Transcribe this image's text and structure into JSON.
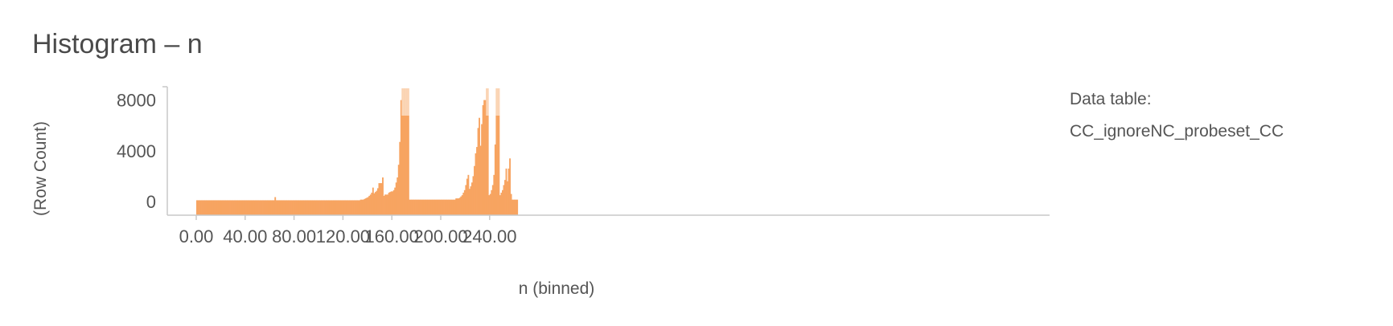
{
  "title": "Histogram – n",
  "legend": {
    "label": "Data table:",
    "table_name": "CC_ignoreNC_probeset_CC"
  },
  "colors": {
    "bar": "#f7a461",
    "axis": "#c8c8c8",
    "text": "#555555"
  },
  "chart_data": {
    "type": "bar",
    "xlabel": "n (binned)",
    "ylabel": "(Row Count)",
    "xlim": [
      -10,
      280
    ],
    "ylim": [
      -1000,
      9000
    ],
    "x_ticks": [
      0,
      40,
      80,
      120,
      160,
      200,
      240
    ],
    "x_tick_labels": [
      "0.00",
      "40.00",
      "80.00",
      "120.00",
      "160.00",
      "200.00",
      "240.00"
    ],
    "y_ticks": [
      0,
      4000,
      8000
    ],
    "y_tick_labels": [
      "0",
      "4000",
      "8000"
    ],
    "bin_width": 1,
    "truncated_above": 8400,
    "bins": [
      {
        "x": 0,
        "value": 100
      },
      {
        "x": 1,
        "value": 100
      },
      {
        "x": 2,
        "value": 100
      },
      {
        "x": 3,
        "value": 100
      },
      {
        "x": 4,
        "value": 100
      },
      {
        "x": 5,
        "value": 100
      },
      {
        "x": 6,
        "value": 100
      },
      {
        "x": 7,
        "value": 100
      },
      {
        "x": 8,
        "value": 100
      },
      {
        "x": 9,
        "value": 100
      },
      {
        "x": 10,
        "value": 100
      },
      {
        "x": 11,
        "value": 100
      },
      {
        "x": 12,
        "value": 100
      },
      {
        "x": 13,
        "value": 100
      },
      {
        "x": 14,
        "value": 100
      },
      {
        "x": 15,
        "value": 100
      },
      {
        "x": 16,
        "value": 100
      },
      {
        "x": 17,
        "value": 100
      },
      {
        "x": 18,
        "value": 100
      },
      {
        "x": 19,
        "value": 100
      },
      {
        "x": 20,
        "value": 100
      },
      {
        "x": 21,
        "value": 100
      },
      {
        "x": 22,
        "value": 100
      },
      {
        "x": 23,
        "value": 100
      },
      {
        "x": 24,
        "value": 100
      },
      {
        "x": 25,
        "value": 100
      },
      {
        "x": 26,
        "value": 100
      },
      {
        "x": 27,
        "value": 100
      },
      {
        "x": 28,
        "value": 100
      },
      {
        "x": 29,
        "value": 100
      },
      {
        "x": 30,
        "value": 100
      },
      {
        "x": 31,
        "value": 100
      },
      {
        "x": 32,
        "value": 100
      },
      {
        "x": 33,
        "value": 100
      },
      {
        "x": 34,
        "value": 100
      },
      {
        "x": 35,
        "value": 100
      },
      {
        "x": 36,
        "value": 100
      },
      {
        "x": 37,
        "value": 100
      },
      {
        "x": 38,
        "value": 100
      },
      {
        "x": 39,
        "value": 100
      },
      {
        "x": 40,
        "value": 100
      },
      {
        "x": 41,
        "value": 100
      },
      {
        "x": 42,
        "value": 100
      },
      {
        "x": 43,
        "value": 100
      },
      {
        "x": 44,
        "value": 100
      },
      {
        "x": 45,
        "value": 100
      },
      {
        "x": 46,
        "value": 100
      },
      {
        "x": 47,
        "value": 100
      },
      {
        "x": 48,
        "value": 100
      },
      {
        "x": 49,
        "value": 100
      },
      {
        "x": 50,
        "value": 100
      },
      {
        "x": 51,
        "value": 100
      },
      {
        "x": 52,
        "value": 100
      },
      {
        "x": 53,
        "value": 100
      },
      {
        "x": 54,
        "value": 100
      },
      {
        "x": 55,
        "value": 100
      },
      {
        "x": 56,
        "value": 100
      },
      {
        "x": 57,
        "value": 100
      },
      {
        "x": 58,
        "value": 100
      },
      {
        "x": 59,
        "value": 100
      },
      {
        "x": 60,
        "value": 100
      },
      {
        "x": 61,
        "value": 100
      },
      {
        "x": 62,
        "value": 100
      },
      {
        "x": 63,
        "value": 100
      },
      {
        "x": 64,
        "value": 350
      },
      {
        "x": 65,
        "value": 100
      },
      {
        "x": 66,
        "value": 100
      },
      {
        "x": 67,
        "value": 100
      },
      {
        "x": 68,
        "value": 100
      },
      {
        "x": 69,
        "value": 100
      },
      {
        "x": 70,
        "value": 100
      },
      {
        "x": 71,
        "value": 100
      },
      {
        "x": 72,
        "value": 100
      },
      {
        "x": 73,
        "value": 100
      },
      {
        "x": 74,
        "value": 100
      },
      {
        "x": 75,
        "value": 100
      },
      {
        "x": 76,
        "value": 100
      },
      {
        "x": 77,
        "value": 100
      },
      {
        "x": 78,
        "value": 100
      },
      {
        "x": 79,
        "value": 100
      },
      {
        "x": 80,
        "value": 100
      },
      {
        "x": 81,
        "value": 100
      },
      {
        "x": 82,
        "value": 100
      },
      {
        "x": 83,
        "value": 100
      },
      {
        "x": 84,
        "value": 100
      },
      {
        "x": 85,
        "value": 100
      },
      {
        "x": 86,
        "value": 100
      },
      {
        "x": 87,
        "value": 100
      },
      {
        "x": 88,
        "value": 100
      },
      {
        "x": 89,
        "value": 100
      },
      {
        "x": 90,
        "value": 100
      },
      {
        "x": 91,
        "value": 100
      },
      {
        "x": 92,
        "value": 100
      },
      {
        "x": 93,
        "value": 100
      },
      {
        "x": 94,
        "value": 100
      },
      {
        "x": 95,
        "value": 100
      },
      {
        "x": 96,
        "value": 100
      },
      {
        "x": 97,
        "value": 100
      },
      {
        "x": 98,
        "value": 100
      },
      {
        "x": 99,
        "value": 100
      },
      {
        "x": 100,
        "value": 100
      },
      {
        "x": 101,
        "value": 100
      },
      {
        "x": 102,
        "value": 100
      },
      {
        "x": 103,
        "value": 100
      },
      {
        "x": 104,
        "value": 100
      },
      {
        "x": 105,
        "value": 100
      },
      {
        "x": 106,
        "value": 100
      },
      {
        "x": 107,
        "value": 100
      },
      {
        "x": 108,
        "value": 100
      },
      {
        "x": 109,
        "value": 100
      },
      {
        "x": 110,
        "value": 100
      },
      {
        "x": 111,
        "value": 100
      },
      {
        "x": 112,
        "value": 100
      },
      {
        "x": 113,
        "value": 100
      },
      {
        "x": 114,
        "value": 100
      },
      {
        "x": 115,
        "value": 100
      },
      {
        "x": 116,
        "value": 100
      },
      {
        "x": 117,
        "value": 100
      },
      {
        "x": 118,
        "value": 100
      },
      {
        "x": 119,
        "value": 100
      },
      {
        "x": 120,
        "value": 100
      },
      {
        "x": 121,
        "value": 100
      },
      {
        "x": 122,
        "value": 100
      },
      {
        "x": 123,
        "value": 100
      },
      {
        "x": 124,
        "value": 100
      },
      {
        "x": 125,
        "value": 100
      },
      {
        "x": 126,
        "value": 100
      },
      {
        "x": 127,
        "value": 100
      },
      {
        "x": 128,
        "value": 100
      },
      {
        "x": 129,
        "value": 100
      },
      {
        "x": 130,
        "value": 100
      },
      {
        "x": 131,
        "value": 100
      },
      {
        "x": 132,
        "value": 100
      },
      {
        "x": 133,
        "value": 100
      },
      {
        "x": 134,
        "value": 150
      },
      {
        "x": 135,
        "value": 150
      },
      {
        "x": 136,
        "value": 150
      },
      {
        "x": 137,
        "value": 200
      },
      {
        "x": 138,
        "value": 250
      },
      {
        "x": 139,
        "value": 300
      },
      {
        "x": 140,
        "value": 350
      },
      {
        "x": 141,
        "value": 450
      },
      {
        "x": 142,
        "value": 550
      },
      {
        "x": 143,
        "value": 700
      },
      {
        "x": 144,
        "value": 1100
      },
      {
        "x": 145,
        "value": 650
      },
      {
        "x": 146,
        "value": 750
      },
      {
        "x": 147,
        "value": 850
      },
      {
        "x": 148,
        "value": 1050
      },
      {
        "x": 149,
        "value": 1450
      },
      {
        "x": 150,
        "value": 1450
      },
      {
        "x": 151,
        "value": 1450
      },
      {
        "x": 152,
        "value": 1900
      },
      {
        "x": 153,
        "value": 450
      },
      {
        "x": 154,
        "value": 550
      },
      {
        "x": 155,
        "value": 550
      },
      {
        "x": 156,
        "value": 550
      },
      {
        "x": 157,
        "value": 700
      },
      {
        "x": 158,
        "value": 750
      },
      {
        "x": 159,
        "value": 800
      },
      {
        "x": 160,
        "value": 800
      },
      {
        "x": 161,
        "value": 900
      },
      {
        "x": 162,
        "value": 1100
      },
      {
        "x": 163,
        "value": 1500
      },
      {
        "x": 164,
        "value": 1900
      },
      {
        "x": 165,
        "value": 2900
      },
      {
        "x": 166,
        "value": 4700
      },
      {
        "x": 167,
        "value": 8000
      },
      {
        "x": 168,
        "value": 10000
      },
      {
        "x": 169,
        "value": 10000
      },
      {
        "x": 170,
        "value": 10000
      },
      {
        "x": 171,
        "value": 10000
      },
      {
        "x": 172,
        "value": 10000
      },
      {
        "x": 173,
        "value": 10000
      },
      {
        "x": 174,
        "value": 150
      },
      {
        "x": 175,
        "value": 150
      },
      {
        "x": 176,
        "value": 150
      },
      {
        "x": 177,
        "value": 150
      },
      {
        "x": 178,
        "value": 150
      },
      {
        "x": 179,
        "value": 150
      },
      {
        "x": 180,
        "value": 150
      },
      {
        "x": 181,
        "value": 150
      },
      {
        "x": 182,
        "value": 150
      },
      {
        "x": 183,
        "value": 150
      },
      {
        "x": 184,
        "value": 150
      },
      {
        "x": 185,
        "value": 150
      },
      {
        "x": 186,
        "value": 150
      },
      {
        "x": 187,
        "value": 150
      },
      {
        "x": 188,
        "value": 150
      },
      {
        "x": 189,
        "value": 150
      },
      {
        "x": 190,
        "value": 150
      },
      {
        "x": 191,
        "value": 150
      },
      {
        "x": 192,
        "value": 150
      },
      {
        "x": 193,
        "value": 150
      },
      {
        "x": 194,
        "value": 150
      },
      {
        "x": 195,
        "value": 150
      },
      {
        "x": 196,
        "value": 150
      },
      {
        "x": 197,
        "value": 150
      },
      {
        "x": 198,
        "value": 150
      },
      {
        "x": 199,
        "value": 150
      },
      {
        "x": 200,
        "value": 150
      },
      {
        "x": 201,
        "value": 150
      },
      {
        "x": 202,
        "value": 150
      },
      {
        "x": 203,
        "value": 150
      },
      {
        "x": 204,
        "value": 150
      },
      {
        "x": 205,
        "value": 150
      },
      {
        "x": 206,
        "value": 150
      },
      {
        "x": 207,
        "value": 150
      },
      {
        "x": 208,
        "value": 150
      },
      {
        "x": 209,
        "value": 150
      },
      {
        "x": 210,
        "value": 150
      },
      {
        "x": 211,
        "value": 150
      },
      {
        "x": 212,
        "value": 250
      },
      {
        "x": 213,
        "value": 250
      },
      {
        "x": 214,
        "value": 250
      },
      {
        "x": 215,
        "value": 300
      },
      {
        "x": 216,
        "value": 400
      },
      {
        "x": 217,
        "value": 500
      },
      {
        "x": 218,
        "value": 700
      },
      {
        "x": 219,
        "value": 900
      },
      {
        "x": 220,
        "value": 1300
      },
      {
        "x": 221,
        "value": 1800
      },
      {
        "x": 222,
        "value": 2100
      },
      {
        "x": 223,
        "value": 1000
      },
      {
        "x": 224,
        "value": 1200
      },
      {
        "x": 225,
        "value": 1500
      },
      {
        "x": 226,
        "value": 2000
      },
      {
        "x": 227,
        "value": 2800
      },
      {
        "x": 228,
        "value": 3800
      },
      {
        "x": 229,
        "value": 4300
      },
      {
        "x": 230,
        "value": 5800
      },
      {
        "x": 231,
        "value": 6600
      },
      {
        "x": 232,
        "value": 4400
      },
      {
        "x": 233,
        "value": 6100
      },
      {
        "x": 234,
        "value": 7600
      },
      {
        "x": 235,
        "value": 8000
      },
      {
        "x": 236,
        "value": 8000
      },
      {
        "x": 237,
        "value": 10000
      },
      {
        "x": 238,
        "value": 10000
      },
      {
        "x": 239,
        "value": 500
      },
      {
        "x": 240,
        "value": 600
      },
      {
        "x": 241,
        "value": 900
      },
      {
        "x": 242,
        "value": 1300
      },
      {
        "x": 243,
        "value": 2100
      },
      {
        "x": 244,
        "value": 4500
      },
      {
        "x": 245,
        "value": 10000
      },
      {
        "x": 246,
        "value": 10000
      },
      {
        "x": 247,
        "value": 10000
      },
      {
        "x": 248,
        "value": 500
      },
      {
        "x": 249,
        "value": 700
      },
      {
        "x": 250,
        "value": 900
      },
      {
        "x": 251,
        "value": 1300
      },
      {
        "x": 252,
        "value": 1700
      },
      {
        "x": 253,
        "value": 2600
      },
      {
        "x": 254,
        "value": 1600
      },
      {
        "x": 255,
        "value": 2600
      },
      {
        "x": 256,
        "value": 3400
      },
      {
        "x": 257,
        "value": 600
      },
      {
        "x": 258,
        "value": 150
      },
      {
        "x": 259,
        "value": 150
      },
      {
        "x": 260,
        "value": 150
      },
      {
        "x": 261,
        "value": 150
      },
      {
        "x": 262,
        "value": 150
      }
    ]
  }
}
